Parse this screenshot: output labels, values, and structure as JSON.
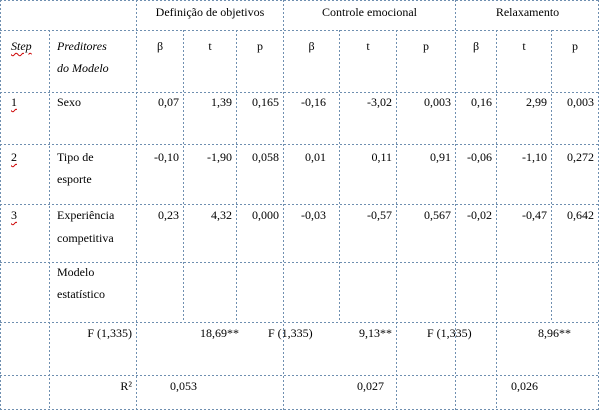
{
  "header": {
    "group1": "Definição de objetivos",
    "group2": "Controle emocional",
    "group3": "Relaxamento"
  },
  "subheader": {
    "step": "Step",
    "predictors_line1": "Preditores",
    "predictors_line2": "do Modelo",
    "beta": "β",
    "t": "t",
    "p": "p"
  },
  "rows": [
    {
      "step": "1",
      "label_line1": "Sexo",
      "label_line2": "",
      "values": [
        "0,07",
        "1,39",
        "0,165",
        "-0,16",
        "-3,02",
        "0,003",
        "0,16",
        "2,99",
        "0,003"
      ]
    },
    {
      "step": "2",
      "label_line1": "Tipo de",
      "label_line2": "esporte",
      "values": [
        "-0,10",
        "-1,90",
        "0,058",
        "0,01",
        "0,11",
        "0,91",
        "-0,06",
        "-1,10",
        "0,272"
      ]
    },
    {
      "step": "3",
      "label_line1": "Experiência",
      "label_line2": "competitiva",
      "values": [
        "0,23",
        "4,32",
        "0,000",
        "-0,03",
        "-0,57",
        "0,567",
        "-0,02",
        "-0,47",
        "0,642"
      ]
    }
  ],
  "model": {
    "line1": "Modelo",
    "line2": "estatístico"
  },
  "f_row": {
    "label1": "F (1,335)",
    "value1": "18,69**",
    "label2": "F (1,335)",
    "value2": "9,13**",
    "label3": "F (1,335)",
    "value3": "8,96**"
  },
  "r2_row": {
    "label": "R²",
    "value1": "0,053",
    "value2": "0,027",
    "value3": "0,026"
  }
}
